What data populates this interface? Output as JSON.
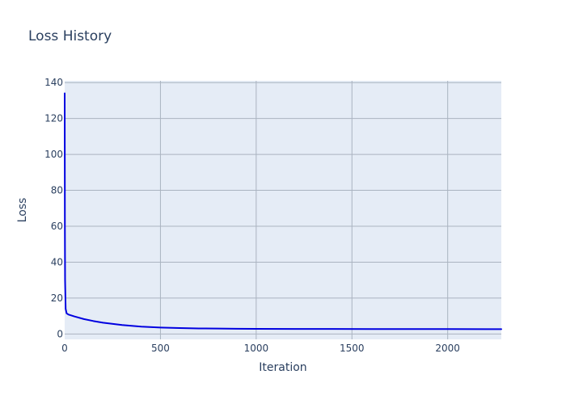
{
  "chart_data": {
    "type": "line",
    "title": "Loss History",
    "xlabel": "Iteration",
    "ylabel": "Loss",
    "xlim": [
      0,
      2280
    ],
    "ylim": [
      -3,
      141
    ],
    "x_ticks": [
      0,
      500,
      1000,
      1500,
      2000
    ],
    "y_ticks": [
      0,
      20,
      40,
      60,
      80,
      100,
      120,
      140
    ],
    "grid": true,
    "legend": "none",
    "colors": {
      "plot_bg": "#e5ecf6",
      "grid": "#aab3c0",
      "line": "#0000e0",
      "text": "#2a3f5f"
    },
    "series": [
      {
        "x": [
          0,
          1,
          2,
          5,
          10,
          20,
          50,
          100,
          150,
          200,
          300,
          400,
          500,
          600,
          700,
          800,
          900,
          1000,
          1200,
          1400,
          1600,
          1800,
          2000,
          2200,
          2280
        ],
        "values": [
          134,
          60,
          30,
          14,
          11.5,
          10.8,
          9.8,
          8.3,
          7.2,
          6.3,
          5.0,
          4.1,
          3.6,
          3.3,
          3.1,
          3.0,
          2.9,
          2.85,
          2.8,
          2.78,
          2.75,
          2.73,
          2.72,
          2.7,
          2.7
        ]
      }
    ]
  }
}
